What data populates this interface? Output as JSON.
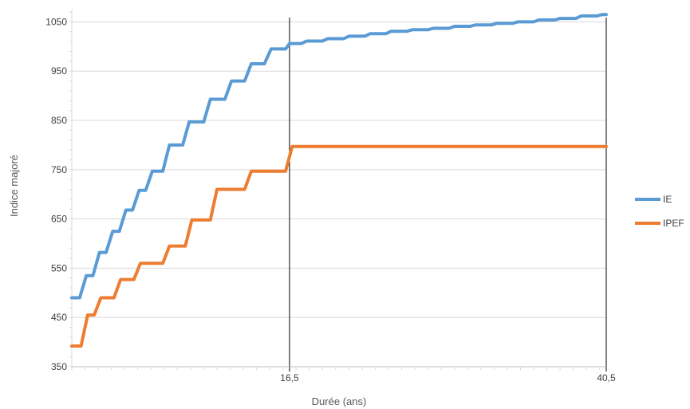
{
  "chart_data": {
    "type": "line",
    "xlabel": "Durée (ans)",
    "ylabel": "Indice majoré",
    "xlim": [
      0,
      40.5
    ],
    "ylim": [
      350,
      1080
    ],
    "y_ticks": [
      350,
      450,
      550,
      650,
      750,
      850,
      950,
      1050
    ],
    "x_tick_labels": [
      {
        "x": 16.5,
        "label": "16,5"
      },
      {
        "x": 40.5,
        "label": "40,5"
      }
    ],
    "vertical_lines": [
      16.5,
      40.5
    ],
    "grid": "horizontal",
    "legend": "right",
    "colors": {
      "IE": "#5b9bd5",
      "IPEF": "#ed7d31"
    },
    "series": [
      {
        "name": "IE",
        "points": [
          [
            0,
            490
          ],
          [
            0.6,
            490
          ],
          [
            1.1,
            535
          ],
          [
            1.6,
            535
          ],
          [
            2.1,
            582
          ],
          [
            2.6,
            582
          ],
          [
            3.1,
            625
          ],
          [
            3.6,
            625
          ],
          [
            4.1,
            668
          ],
          [
            4.6,
            668
          ],
          [
            5.1,
            708
          ],
          [
            5.6,
            708
          ],
          [
            6.1,
            747
          ],
          [
            6.9,
            747
          ],
          [
            7.4,
            800
          ],
          [
            8.4,
            800
          ],
          [
            8.9,
            847
          ],
          [
            10.0,
            847
          ],
          [
            10.5,
            893
          ],
          [
            11.6,
            893
          ],
          [
            12.1,
            930
          ],
          [
            13.1,
            930
          ],
          [
            13.6,
            965
          ],
          [
            14.6,
            965
          ],
          [
            15.1,
            995
          ],
          [
            16.2,
            995
          ],
          [
            16.5,
            1006
          ],
          [
            17.4,
            1006
          ],
          [
            17.8,
            1011
          ],
          [
            19.0,
            1011
          ],
          [
            19.4,
            1016
          ],
          [
            20.6,
            1016
          ],
          [
            21.0,
            1021
          ],
          [
            22.2,
            1021
          ],
          [
            22.6,
            1026
          ],
          [
            23.8,
            1026
          ],
          [
            24.2,
            1031
          ],
          [
            25.4,
            1031
          ],
          [
            25.8,
            1034
          ],
          [
            27.0,
            1034
          ],
          [
            27.4,
            1037
          ],
          [
            28.6,
            1037
          ],
          [
            29.0,
            1041
          ],
          [
            30.2,
            1041
          ],
          [
            30.6,
            1044
          ],
          [
            31.8,
            1044
          ],
          [
            32.2,
            1047
          ],
          [
            33.4,
            1047
          ],
          [
            33.8,
            1050
          ],
          [
            35.0,
            1050
          ],
          [
            35.4,
            1054
          ],
          [
            36.6,
            1054
          ],
          [
            37.0,
            1057
          ],
          [
            38.2,
            1057
          ],
          [
            38.6,
            1062
          ],
          [
            39.8,
            1062
          ],
          [
            40.2,
            1065
          ],
          [
            40.5,
            1065
          ]
        ]
      },
      {
        "name": "IPEF",
        "points": [
          [
            0,
            392
          ],
          [
            0.7,
            392
          ],
          [
            1.2,
            455
          ],
          [
            1.7,
            455
          ],
          [
            2.2,
            490
          ],
          [
            3.2,
            490
          ],
          [
            3.7,
            527
          ],
          [
            4.7,
            527
          ],
          [
            5.2,
            560
          ],
          [
            6.9,
            560
          ],
          [
            7.4,
            595
          ],
          [
            8.6,
            595
          ],
          [
            9.1,
            648
          ],
          [
            10.5,
            648
          ],
          [
            11.0,
            710
          ],
          [
            13.1,
            710
          ],
          [
            13.6,
            747
          ],
          [
            16.2,
            747
          ],
          [
            16.7,
            797
          ],
          [
            40.5,
            797
          ]
        ]
      }
    ]
  }
}
